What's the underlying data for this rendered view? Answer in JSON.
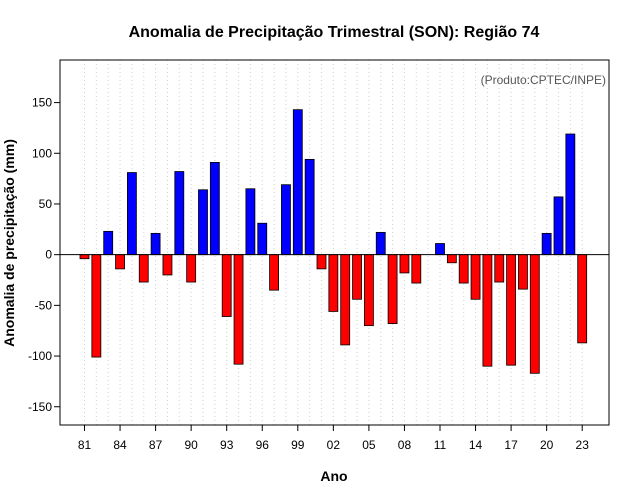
{
  "chart_data": {
    "type": "bar",
    "title": "Anomalia de Precipitação Trimestral (SON): Região 74",
    "xlabel": "Ano",
    "ylabel": "Anomalia de precipitação (mm)",
    "credit": "(Produto:CPTEC/INPE)",
    "ylim": [
      -168,
      192
    ],
    "yticks": [
      -150,
      -100,
      -50,
      0,
      50,
      100,
      150
    ],
    "grid": "vertical-dotted",
    "positive_color": "#0000ff",
    "negative_color": "#ff0000",
    "categories": [
      "81",
      "82",
      "83",
      "84",
      "85",
      "86",
      "87",
      "88",
      "89",
      "90",
      "91",
      "92",
      "93",
      "94",
      "95",
      "96",
      "97",
      "98",
      "99",
      "00",
      "01",
      "02",
      "03",
      "04",
      "05",
      "06",
      "07",
      "08",
      "09",
      "10",
      "11",
      "12",
      "13",
      "14",
      "15",
      "16",
      "17",
      "18",
      "19",
      "20",
      "21",
      "22",
      "23"
    ],
    "xtick_labels": [
      "81",
      "84",
      "87",
      "90",
      "93",
      "96",
      "99",
      "02",
      "05",
      "08",
      "11",
      "14",
      "17",
      "20",
      "23"
    ],
    "values": [
      -4,
      -101,
      23,
      -14,
      81,
      -27,
      21,
      -20,
      82,
      -27,
      64,
      91,
      -61,
      -108,
      65,
      31,
      -35,
      69,
      143,
      94,
      -14,
      -56,
      -89,
      -44,
      -70,
      22,
      -68,
      -18,
      -28,
      0,
      11,
      -8,
      -28,
      -44,
      -110,
      -27,
      -109,
      -34,
      -117,
      21,
      57,
      119,
      -87
    ]
  }
}
